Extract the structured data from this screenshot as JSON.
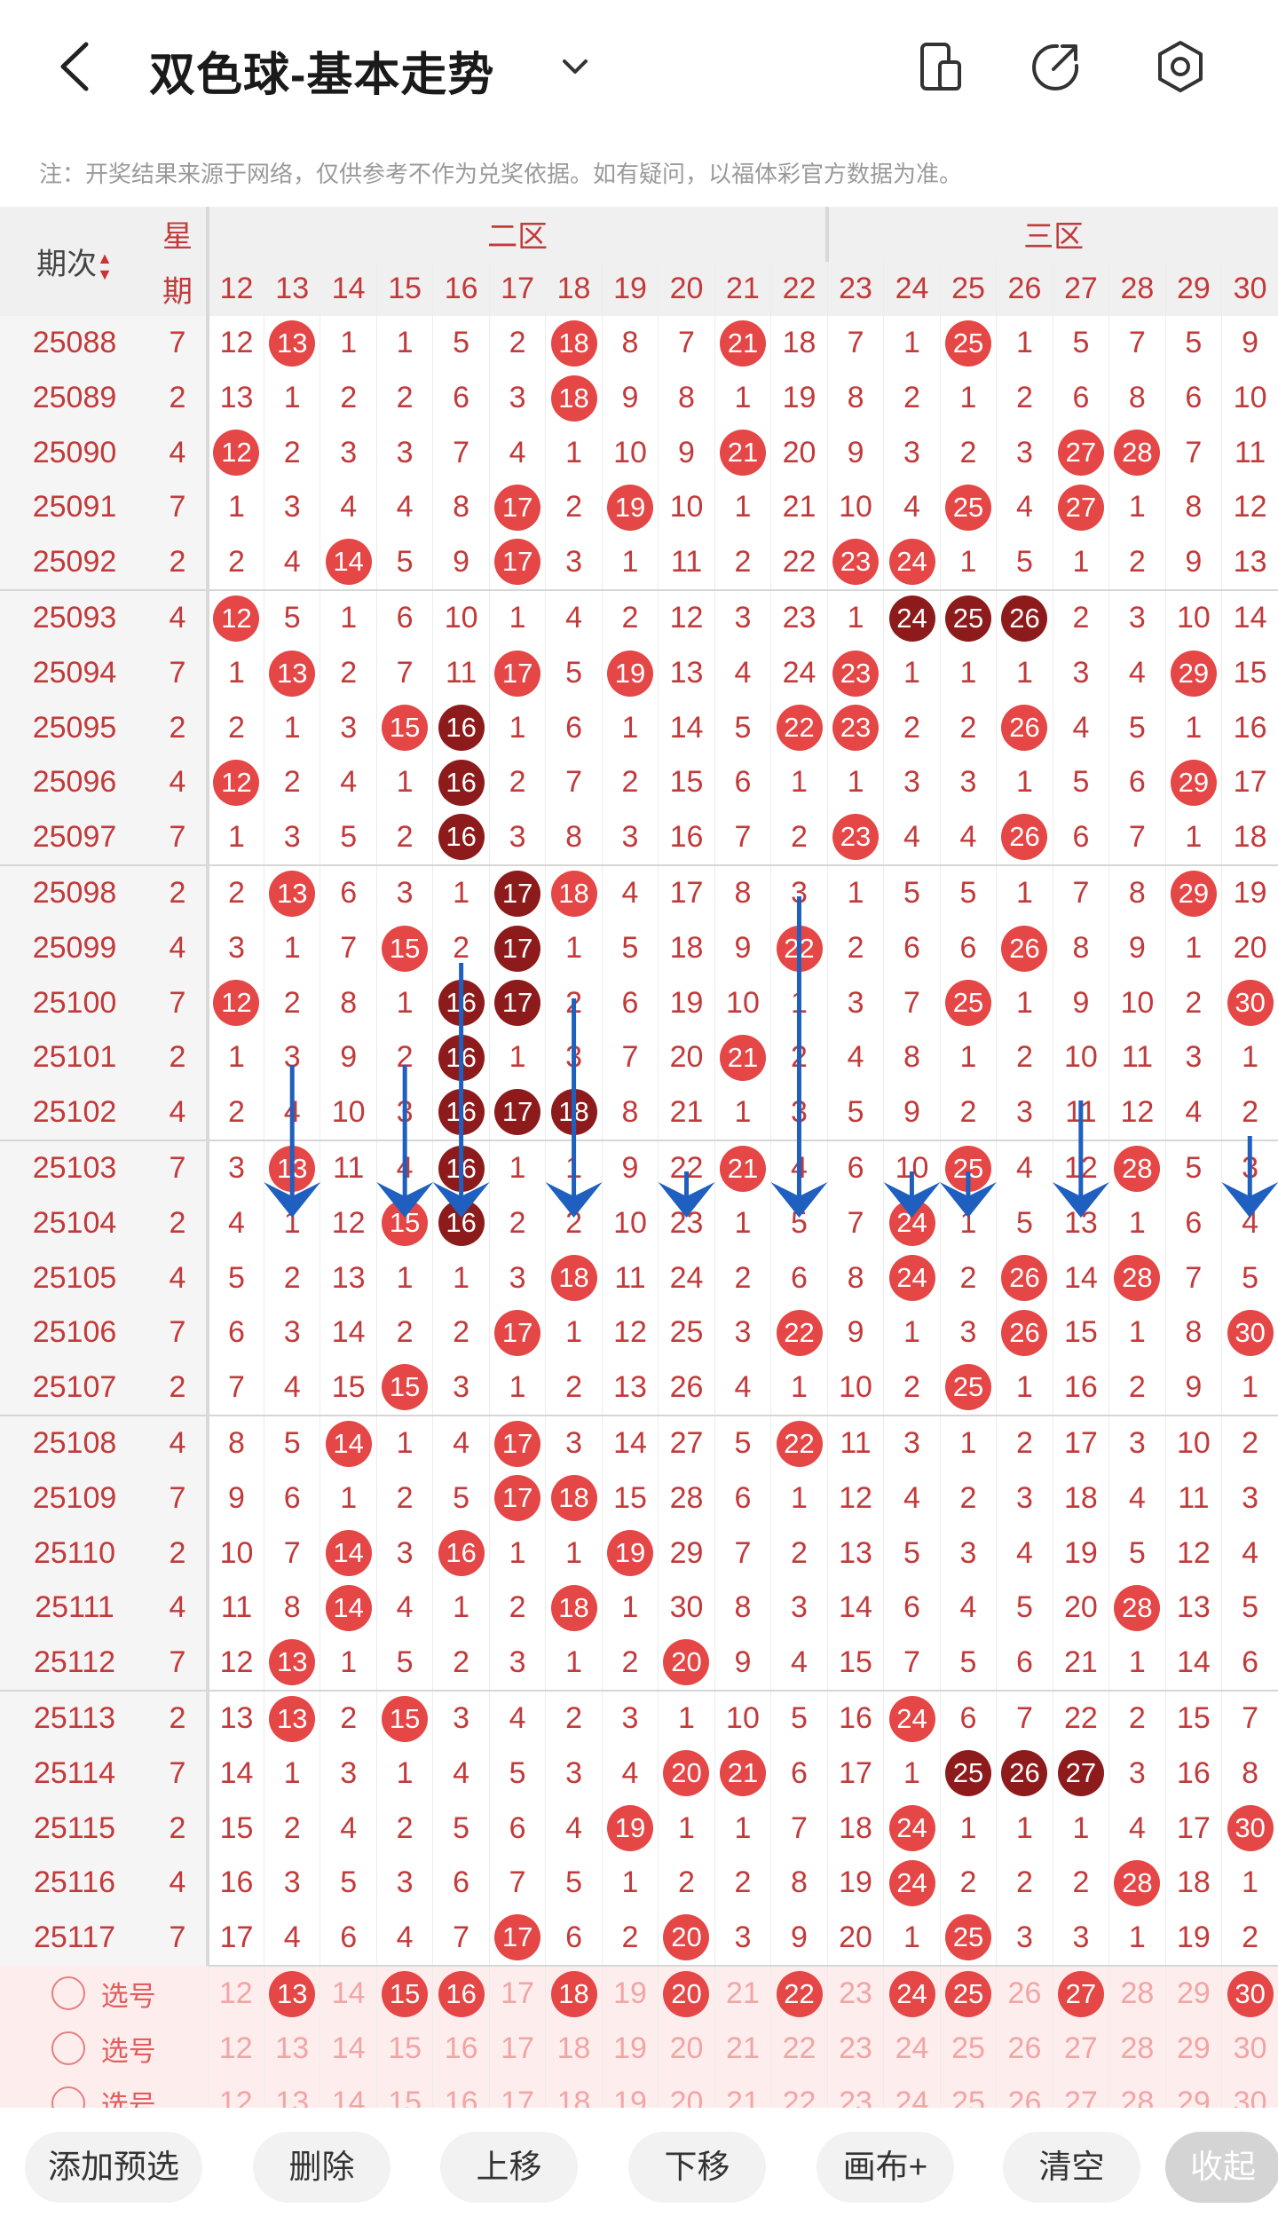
{
  "header": {
    "title": "双色球-基本走势",
    "note": "注：开奖结果来源于网络，仅供参考不作为兑奖依据。如有疑问，以福体彩官方数据为准。"
  },
  "table": {
    "period_label": "期次",
    "week_label_top": "星",
    "week_label_bottom": "期",
    "zone2_label": "二区",
    "zone3_label": "三区",
    "columns": [
      "12",
      "13",
      "14",
      "15",
      "16",
      "17",
      "18",
      "19",
      "20",
      "21",
      "22",
      "23",
      "24",
      "25",
      "26",
      "27",
      "28",
      "29",
      "30"
    ],
    "rows": [
      {
        "period": "25088",
        "week": "7",
        "cells": [
          "12",
          "13",
          "1",
          "1",
          "5",
          "2",
          "18",
          "8",
          "7",
          "21",
          "18",
          "7",
          "1",
          "25",
          "1",
          "5",
          "7",
          "5",
          "9"
        ],
        "hit": [
          13,
          18,
          21,
          25
        ]
      },
      {
        "period": "25089",
        "week": "2",
        "cells": [
          "13",
          "1",
          "2",
          "2",
          "6",
          "3",
          "18",
          "9",
          "8",
          "1",
          "19",
          "8",
          "2",
          "1",
          "2",
          "6",
          "8",
          "6",
          "10"
        ],
        "hit": [
          18
        ]
      },
      {
        "period": "25090",
        "week": "4",
        "cells": [
          "12",
          "2",
          "3",
          "3",
          "7",
          "4",
          "1",
          "10",
          "9",
          "21",
          "20",
          "9",
          "3",
          "2",
          "3",
          "27",
          "28",
          "7",
          "11"
        ],
        "hit": [
          12,
          21,
          27,
          28
        ]
      },
      {
        "period": "25091",
        "week": "7",
        "cells": [
          "1",
          "3",
          "4",
          "4",
          "8",
          "17",
          "2",
          "19",
          "10",
          "1",
          "21",
          "10",
          "4",
          "25",
          "4",
          "27",
          "1",
          "8",
          "12"
        ],
        "hit": [
          17,
          19,
          25,
          27
        ]
      },
      {
        "period": "25092",
        "week": "2",
        "cells": [
          "2",
          "4",
          "14",
          "5",
          "9",
          "17",
          "3",
          "1",
          "11",
          "2",
          "22",
          "23",
          "24",
          "1",
          "5",
          "1",
          "2",
          "9",
          "13"
        ],
        "hit": [
          14,
          17,
          23,
          24
        ]
      },
      {
        "period": "25093",
        "week": "4",
        "cells": [
          "12",
          "5",
          "1",
          "6",
          "10",
          "1",
          "4",
          "2",
          "12",
          "3",
          "23",
          "1",
          "24",
          "25",
          "26",
          "2",
          "3",
          "10",
          "14"
        ],
        "hit": [
          12
        ],
        "rep": [
          24,
          25,
          26
        ]
      },
      {
        "period": "25094",
        "week": "7",
        "cells": [
          "1",
          "13",
          "2",
          "7",
          "11",
          "17",
          "5",
          "19",
          "13",
          "4",
          "24",
          "23",
          "1",
          "1",
          "1",
          "3",
          "4",
          "29",
          "15"
        ],
        "hit": [
          13,
          17,
          19,
          23,
          29
        ]
      },
      {
        "period": "25095",
        "week": "2",
        "cells": [
          "2",
          "1",
          "3",
          "15",
          "16",
          "1",
          "6",
          "1",
          "14",
          "5",
          "22",
          "23",
          "2",
          "2",
          "26",
          "4",
          "5",
          "1",
          "16"
        ],
        "hit": [
          15,
          22,
          23,
          26
        ],
        "rep": [
          16
        ]
      },
      {
        "period": "25096",
        "week": "4",
        "cells": [
          "12",
          "2",
          "4",
          "1",
          "16",
          "2",
          "7",
          "2",
          "15",
          "6",
          "1",
          "1",
          "3",
          "3",
          "1",
          "5",
          "6",
          "29",
          "17"
        ],
        "hit": [
          12,
          29
        ],
        "rep": [
          16
        ]
      },
      {
        "period": "25097",
        "week": "7",
        "cells": [
          "1",
          "3",
          "5",
          "2",
          "16",
          "3",
          "8",
          "3",
          "16",
          "7",
          "2",
          "23",
          "4",
          "4",
          "26",
          "6",
          "7",
          "1",
          "18"
        ],
        "hit": [
          23,
          26
        ],
        "rep": [
          16
        ]
      },
      {
        "period": "25098",
        "week": "2",
        "cells": [
          "2",
          "13",
          "6",
          "3",
          "1",
          "17",
          "18",
          "4",
          "17",
          "8",
          "3",
          "1",
          "5",
          "5",
          "1",
          "7",
          "8",
          "29",
          "19"
        ],
        "hit": [
          13,
          18,
          29
        ],
        "rep": [
          17
        ]
      },
      {
        "period": "25099",
        "week": "4",
        "cells": [
          "3",
          "1",
          "7",
          "15",
          "2",
          "17",
          "1",
          "5",
          "18",
          "9",
          "22",
          "2",
          "6",
          "6",
          "26",
          "8",
          "9",
          "1",
          "20"
        ],
        "hit": [
          15,
          22,
          26
        ],
        "rep": [
          17
        ]
      },
      {
        "period": "25100",
        "week": "7",
        "cells": [
          "12",
          "2",
          "8",
          "1",
          "16",
          "17",
          "2",
          "6",
          "19",
          "10",
          "1",
          "3",
          "7",
          "25",
          "1",
          "9",
          "10",
          "2",
          "30"
        ],
        "hit": [
          12,
          25,
          30
        ],
        "rep": [
          16,
          17
        ]
      },
      {
        "period": "25101",
        "week": "2",
        "cells": [
          "1",
          "3",
          "9",
          "2",
          "16",
          "1",
          "3",
          "7",
          "20",
          "21",
          "2",
          "4",
          "8",
          "1",
          "2",
          "10",
          "11",
          "3",
          "1"
        ],
        "hit": [
          21
        ],
        "rep": [
          16
        ]
      },
      {
        "period": "25102",
        "week": "4",
        "cells": [
          "2",
          "4",
          "10",
          "3",
          "16",
          "17",
          "18",
          "8",
          "21",
          "1",
          "3",
          "5",
          "9",
          "2",
          "3",
          "11",
          "12",
          "4",
          "2"
        ],
        "hit": [],
        "rep": [
          16,
          17,
          18
        ]
      },
      {
        "period": "25103",
        "week": "7",
        "cells": [
          "3",
          "13",
          "11",
          "4",
          "16",
          "1",
          "1",
          "9",
          "22",
          "21",
          "4",
          "6",
          "10",
          "25",
          "4",
          "12",
          "28",
          "5",
          "3"
        ],
        "hit": [
          13,
          21,
          25,
          28
        ],
        "rep": [
          16
        ]
      },
      {
        "period": "25104",
        "week": "2",
        "cells": [
          "4",
          "1",
          "12",
          "15",
          "16",
          "2",
          "2",
          "10",
          "23",
          "1",
          "5",
          "7",
          "24",
          "1",
          "5",
          "13",
          "1",
          "6",
          "4"
        ],
        "hit": [
          15,
          24
        ],
        "rep": [
          16
        ]
      },
      {
        "period": "25105",
        "week": "4",
        "cells": [
          "5",
          "2",
          "13",
          "1",
          "1",
          "3",
          "18",
          "11",
          "24",
          "2",
          "6",
          "8",
          "24",
          "2",
          "26",
          "14",
          "28",
          "7",
          "5"
        ],
        "hit": [
          18,
          24,
          26,
          28
        ]
      },
      {
        "period": "25106",
        "week": "7",
        "cells": [
          "6",
          "3",
          "14",
          "2",
          "2",
          "17",
          "1",
          "12",
          "25",
          "3",
          "22",
          "9",
          "1",
          "3",
          "26",
          "15",
          "1",
          "8",
          "30"
        ],
        "hit": [
          17,
          22,
          26,
          30
        ]
      },
      {
        "period": "25107",
        "week": "2",
        "cells": [
          "7",
          "4",
          "15",
          "15",
          "3",
          "1",
          "2",
          "13",
          "26",
          "4",
          "1",
          "10",
          "2",
          "25",
          "1",
          "16",
          "2",
          "9",
          "1"
        ],
        "hit": [
          15,
          25
        ]
      },
      {
        "period": "25108",
        "week": "4",
        "cells": [
          "8",
          "5",
          "14",
          "1",
          "4",
          "17",
          "3",
          "14",
          "27",
          "5",
          "22",
          "11",
          "3",
          "1",
          "2",
          "17",
          "3",
          "10",
          "2"
        ],
        "hit": [
          14,
          17,
          22
        ]
      },
      {
        "period": "25109",
        "week": "7",
        "cells": [
          "9",
          "6",
          "1",
          "2",
          "5",
          "17",
          "18",
          "15",
          "28",
          "6",
          "1",
          "12",
          "4",
          "2",
          "3",
          "18",
          "4",
          "11",
          "3"
        ],
        "hit": [
          17,
          18
        ]
      },
      {
        "period": "25110",
        "week": "2",
        "cells": [
          "10",
          "7",
          "14",
          "3",
          "16",
          "1",
          "1",
          "19",
          "29",
          "7",
          "2",
          "13",
          "5",
          "3",
          "4",
          "19",
          "5",
          "12",
          "4"
        ],
        "hit": [
          14,
          16,
          19
        ]
      },
      {
        "period": "25111",
        "week": "4",
        "cells": [
          "11",
          "8",
          "14",
          "4",
          "1",
          "2",
          "18",
          "1",
          "30",
          "8",
          "3",
          "14",
          "6",
          "4",
          "5",
          "20",
          "28",
          "13",
          "5"
        ],
        "hit": [
          14,
          18,
          28
        ]
      },
      {
        "period": "25112",
        "week": "7",
        "cells": [
          "12",
          "13",
          "1",
          "5",
          "2",
          "3",
          "1",
          "2",
          "20",
          "9",
          "4",
          "15",
          "7",
          "5",
          "6",
          "21",
          "1",
          "14",
          "6"
        ],
        "hit": [
          13,
          20
        ]
      },
      {
        "period": "25113",
        "week": "2",
        "cells": [
          "13",
          "13",
          "2",
          "15",
          "3",
          "4",
          "2",
          "3",
          "1",
          "10",
          "5",
          "16",
          "24",
          "6",
          "7",
          "22",
          "2",
          "15",
          "7"
        ],
        "hit": [
          13,
          15,
          24
        ]
      },
      {
        "period": "25114",
        "week": "7",
        "cells": [
          "14",
          "1",
          "3",
          "1",
          "4",
          "5",
          "3",
          "4",
          "20",
          "21",
          "6",
          "17",
          "1",
          "25",
          "26",
          "27",
          "3",
          "16",
          "8"
        ],
        "hit": [
          20,
          21
        ],
        "rep": [
          25,
          26,
          27
        ]
      },
      {
        "period": "25115",
        "week": "2",
        "cells": [
          "15",
          "2",
          "4",
          "2",
          "5",
          "6",
          "4",
          "19",
          "1",
          "1",
          "7",
          "18",
          "24",
          "1",
          "1",
          "1",
          "4",
          "17",
          "30"
        ],
        "hit": [
          19,
          24,
          30
        ]
      },
      {
        "period": "25116",
        "week": "4",
        "cells": [
          "16",
          "3",
          "5",
          "3",
          "6",
          "7",
          "5",
          "1",
          "2",
          "2",
          "8",
          "19",
          "24",
          "2",
          "2",
          "2",
          "28",
          "18",
          "1"
        ],
        "hit": [
          24,
          28
        ]
      },
      {
        "period": "25117",
        "week": "7",
        "cells": [
          "17",
          "4",
          "6",
          "4",
          "7",
          "17",
          "6",
          "2",
          "20",
          "3",
          "9",
          "20",
          "1",
          "25",
          "3",
          "3",
          "1",
          "19",
          "2"
        ],
        "hit": [
          17,
          20,
          25
        ]
      }
    ],
    "pick_label": "选号",
    "pick_row1_hits": [
      13,
      15,
      16,
      18,
      20,
      22,
      24,
      25,
      27,
      30
    ]
  },
  "toolbar": {
    "add": "添加预选",
    "delete": "删除",
    "up": "上移",
    "down": "下移",
    "canvas": "画布+",
    "clear": "清空",
    "collapse": "收起"
  },
  "colors": {
    "hit": "#e54646",
    "repeat": "#8e1b1b",
    "arrow": "#1f5fbf",
    "pick_bg": "#fdeeed"
  }
}
